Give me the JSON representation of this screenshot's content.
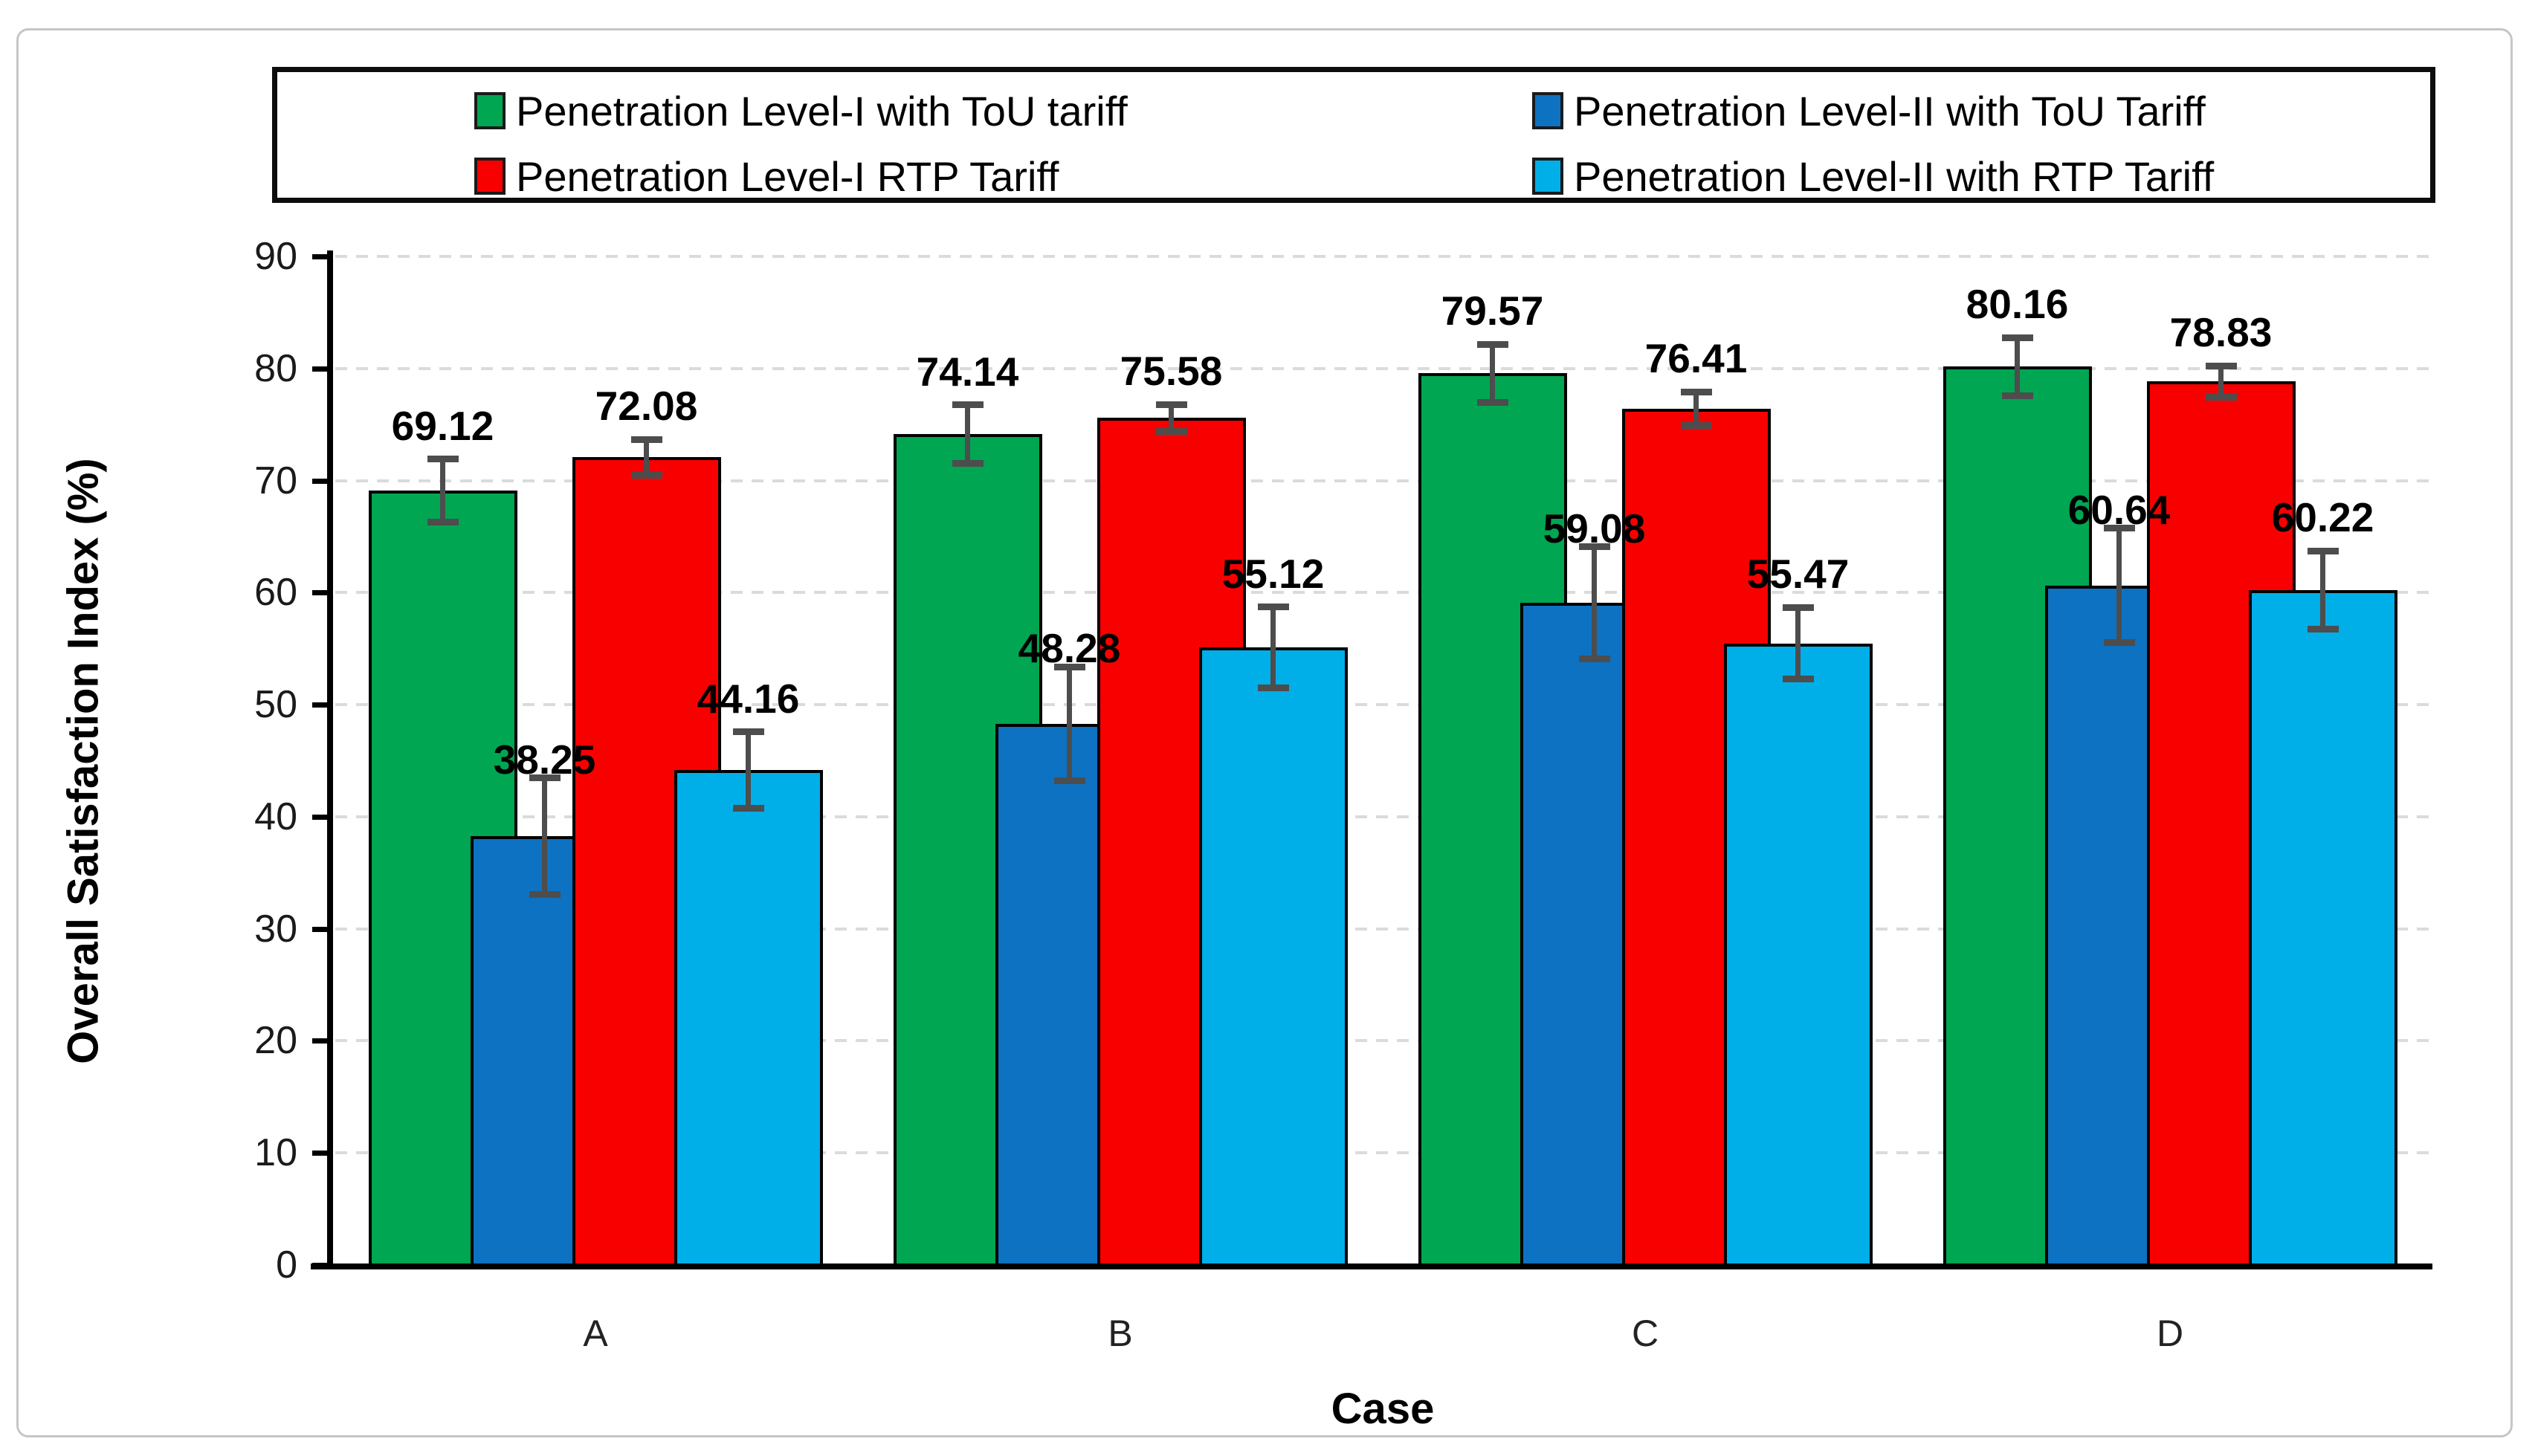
{
  "figure": {
    "background_color": "#ffffff",
    "frame_border_color": "#c6c6c6"
  },
  "legend": {
    "border_color": "#0d0d0d",
    "position": "top",
    "items": [
      {
        "label": "Penetration Level-I with ToU tariff",
        "color": "#00A651",
        "column": 0,
        "row": 0
      },
      {
        "label": "Penetration Level-II with ToU Tariff",
        "color": "#0D72C2",
        "column": 1,
        "row": 0
      },
      {
        "label": "Penetration Level-I RTP Tariff",
        "color": "#F90000",
        "column": 0,
        "row": 1
      },
      {
        "label": "Penetration Level-II with RTP Tariff",
        "color": "#00AEE8",
        "column": 1,
        "row": 1
      }
    ]
  },
  "chart_data": {
    "type": "bar",
    "title": "",
    "xlabel": "Case",
    "ylabel": "Overall Satisfaction Index (%)",
    "ylim": [
      0,
      90
    ],
    "ytick_step": 10,
    "yticks": [
      0,
      10,
      20,
      30,
      40,
      50,
      60,
      70,
      80,
      90
    ],
    "grid": "horizontal-dashed",
    "gridline_color": "#dbdbdb",
    "legend_position": "top",
    "bar_style": "grouped-overlapping",
    "error_bar_color": "#4d4d4d",
    "categories": [
      "A",
      "B",
      "C",
      "D"
    ],
    "series": [
      {
        "name": "Penetration Level-I with ToU tariff",
        "color": "#00A651",
        "values": [
          69.12,
          74.14,
          79.57,
          80.16
        ],
        "errors": [
          2.8,
          2.6,
          2.6,
          2.6
        ]
      },
      {
        "name": "Penetration Level-II with ToU Tariff",
        "color": "#0D72C2",
        "values": [
          38.25,
          48.28,
          59.08,
          60.64
        ],
        "errors": [
          5.2,
          5.1,
          5.0,
          5.1
        ]
      },
      {
        "name": "Penetration Level-I RTP Tariff",
        "color": "#F90000",
        "values": [
          72.08,
          75.58,
          76.41,
          78.83
        ],
        "errors": [
          1.6,
          1.2,
          1.5,
          1.4
        ]
      },
      {
        "name": "Penetration Level-II with RTP Tariff",
        "color": "#00AEE8",
        "values": [
          44.16,
          55.12,
          55.47,
          60.22
        ],
        "errors": [
          3.4,
          3.6,
          3.2,
          3.5
        ]
      }
    ],
    "data_labels": [
      [
        "69.12",
        "74.14",
        "79.57",
        "80.16"
      ],
      [
        "38.25",
        "48.28",
        "59.08",
        "60.64"
      ],
      [
        "72.08",
        "75.58",
        "76.41",
        "78.83"
      ],
      [
        "44.16",
        "55.12",
        "55.47",
        "60.22"
      ]
    ]
  }
}
